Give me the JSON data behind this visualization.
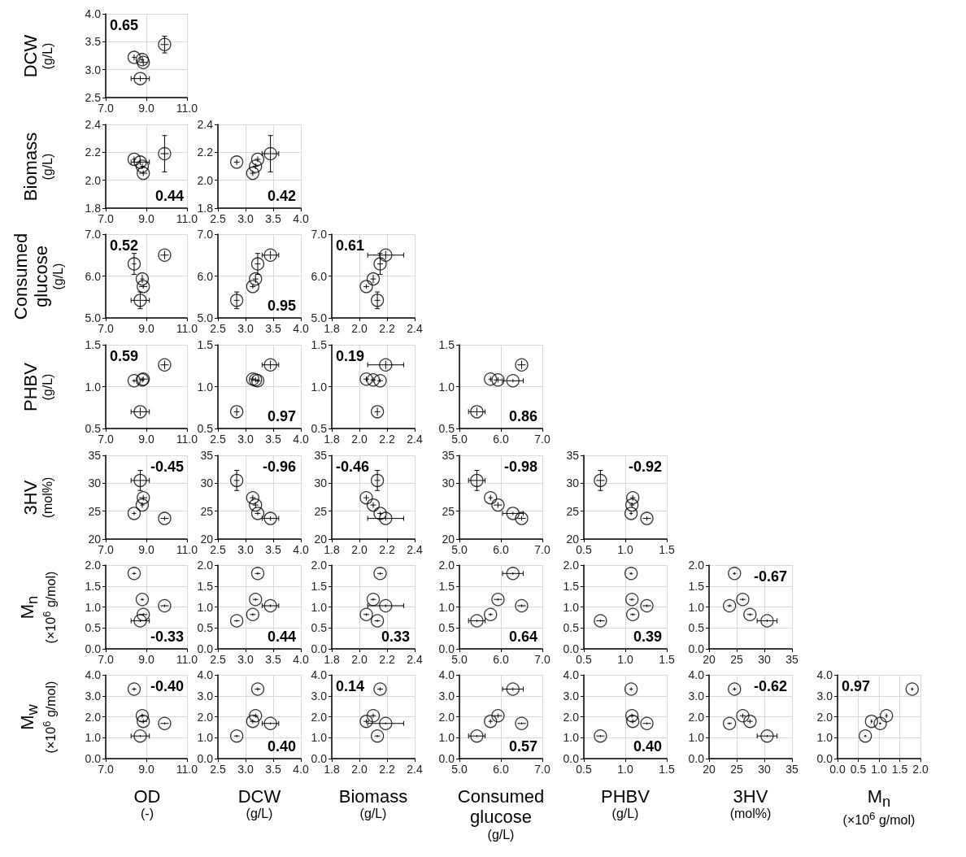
{
  "chart_data": [
    {
      "type": "scatter",
      "ylabel": "DCW (g/L)",
      "x": [
        8.7,
        8.85,
        8.8,
        8.4,
        9.9
      ],
      "xerrors": [
        0.45,
        0.2,
        0.1,
        0.1,
        0.2
      ],
      "values": [
        2.84,
        3.13,
        3.18,
        3.22,
        3.45
      ],
      "errors": [
        0.05,
        0.05,
        0.05,
        0.05,
        0.15
      ],
      "color": "#000000",
      "marker": "circle",
      "grid": true,
      "xlim": [
        7,
        11
      ],
      "xticks": [
        {
          "value": 7,
          "label": "7.0"
        },
        {
          "value": 9,
          "label": "9.0"
        },
        {
          "value": 11,
          "label": "11.0"
        }
      ],
      "ylim": [
        2.5,
        4
      ],
      "yticks": [
        2.5,
        {
          "value": 3,
          "label": "3.0"
        },
        3.5,
        {
          "value": 4,
          "label": "4.0"
        }
      ],
      "annotations": [
        {
          "text": "0.65"
        }
      ]
    },
    {
      "type": "scatter",
      "ylabel": "Biomass (g/L)",
      "x": [
        8.7,
        8.85,
        8.8,
        8.4,
        9.9
      ],
      "xerrors": [
        0.45,
        0.2,
        0.1,
        0.1,
        0.2
      ],
      "values": [
        2.13,
        2.05,
        2.1,
        2.15,
        2.19
      ],
      "errors": [
        0.02,
        0.02,
        0.02,
        0.02,
        0.13
      ],
      "color": "#000000",
      "marker": "circle",
      "grid": true,
      "xlim": [
        7,
        11
      ],
      "xticks": [
        {
          "value": 7,
          "label": "7.0"
        },
        {
          "value": 9,
          "label": "9.0"
        },
        {
          "value": 11,
          "label": "11.0"
        }
      ],
      "ylim": [
        1.8,
        2.4
      ],
      "yticks": [
        1.8,
        {
          "value": 2,
          "label": "2.0"
        },
        2.2,
        2.4
      ],
      "annotations": [
        {
          "text": "0.44"
        }
      ]
    },
    {
      "type": "scatter",
      "x": [
        2.84,
        3.13,
        3.18,
        3.22,
        3.45
      ],
      "xerrors": [
        0.05,
        0.05,
        0.05,
        0.05,
        0.15
      ],
      "values": [
        2.13,
        2.05,
        2.1,
        2.15,
        2.19
      ],
      "errors": [
        0.02,
        0.02,
        0.02,
        0.02,
        0.13
      ],
      "color": "#000000",
      "marker": "circle",
      "grid": true,
      "xlim": [
        2.5,
        4
      ],
      "xticks": [
        2.5,
        {
          "value": 3,
          "label": "3.0"
        },
        3.5,
        {
          "value": 4,
          "label": "4.0"
        }
      ],
      "ylim": [
        1.8,
        2.4
      ],
      "yticks": [
        1.8,
        {
          "value": 2,
          "label": "2.0"
        },
        2.2,
        2.4
      ],
      "annotations": [
        {
          "text": "0.42"
        }
      ]
    },
    {
      "type": "scatter",
      "ylabel": "Consumed glucose (g/L)",
      "x": [
        8.7,
        8.85,
        8.8,
        8.4,
        9.9
      ],
      "xerrors": [
        0.45,
        0.2,
        0.1,
        0.1,
        0.2
      ],
      "values": [
        5.42,
        5.75,
        5.93,
        6.29,
        6.5
      ],
      "errors": [
        0.2,
        0.05,
        0.1,
        0.25,
        0.1
      ],
      "color": "#000000",
      "marker": "circle",
      "grid": true,
      "xlim": [
        7,
        11
      ],
      "xticks": [
        {
          "value": 7,
          "label": "7.0"
        },
        {
          "value": 9,
          "label": "9.0"
        },
        {
          "value": 11,
          "label": "11.0"
        }
      ],
      "ylim": [
        5,
        7
      ],
      "yticks": [
        {
          "value": 5,
          "label": "5.0"
        },
        {
          "value": 6,
          "label": "6.0"
        },
        {
          "value": 7,
          "label": "7.0"
        }
      ],
      "annotations": [
        {
          "text": "0.52"
        }
      ]
    },
    {
      "type": "scatter",
      "x": [
        2.84,
        3.13,
        3.18,
        3.22,
        3.45
      ],
      "xerrors": [
        0.05,
        0.05,
        0.05,
        0.05,
        0.15
      ],
      "values": [
        5.42,
        5.75,
        5.93,
        6.29,
        6.5
      ],
      "errors": [
        0.2,
        0.05,
        0.1,
        0.25,
        0.1
      ],
      "color": "#000000",
      "marker": "circle",
      "grid": true,
      "xlim": [
        2.5,
        4
      ],
      "xticks": [
        2.5,
        {
          "value": 3,
          "label": "3.0"
        },
        3.5,
        {
          "value": 4,
          "label": "4.0"
        }
      ],
      "ylim": [
        5,
        7
      ],
      "yticks": [
        {
          "value": 5,
          "label": "5.0"
        },
        {
          "value": 6,
          "label": "6.0"
        },
        {
          "value": 7,
          "label": "7.0"
        }
      ],
      "annotations": [
        "0.95"
      ]
    },
    {
      "type": "scatter",
      "x": [
        2.13,
        2.05,
        2.1,
        2.15,
        2.19
      ],
      "xerrors": [
        0.02,
        0.02,
        0.02,
        0.02,
        0.13
      ],
      "values": [
        5.42,
        5.75,
        5.93,
        6.29,
        6.5
      ],
      "errors": [
        0.2,
        0.05,
        0.1,
        0.25,
        0.1
      ],
      "color": "#000000",
      "marker": "circle",
      "grid": true,
      "xlim": [
        1.8,
        2.4
      ],
      "xticks": [
        1.8,
        {
          "value": 2,
          "label": "2.0"
        },
        2.2,
        2.4
      ],
      "ylim": [
        5,
        7
      ],
      "yticks": [
        {
          "value": 5,
          "label": "5.0"
        },
        {
          "value": 6,
          "label": "6.0"
        },
        {
          "value": 7,
          "label": "7.0"
        }
      ],
      "annotations": [
        {
          "text": "0.61"
        }
      ]
    },
    {
      "type": "scatter",
      "ylabel": "PHBV (g/L)",
      "x": [
        8.7,
        8.85,
        8.8,
        8.4,
        9.9
      ],
      "xerrors": [
        0.45,
        0.2,
        0.1,
        0.1,
        0.2
      ],
      "values": [
        0.7,
        1.09,
        1.08,
        1.07,
        1.26
      ],
      "errors": [
        0.05,
        0.03,
        0.03,
        0.02,
        0.05
      ],
      "color": "#000000",
      "marker": "circle",
      "grid": true,
      "xlim": [
        7,
        11
      ],
      "xticks": [
        {
          "value": 7,
          "label": "7.0"
        },
        {
          "value": 9,
          "label": "9.0"
        },
        {
          "value": 11,
          "label": "11.0"
        }
      ],
      "ylim": [
        0.5,
        1.5
      ],
      "yticks": [
        0.5,
        {
          "value": 1,
          "label": "1.0"
        },
        1.5
      ],
      "annotations": [
        {
          "text": "0.59"
        }
      ]
    },
    {
      "type": "scatter",
      "x": [
        2.84,
        3.13,
        3.18,
        3.22,
        3.45
      ],
      "xerrors": [
        0.05,
        0.05,
        0.05,
        0.05,
        0.15
      ],
      "values": [
        0.7,
        1.09,
        1.08,
        1.07,
        1.26
      ],
      "errors": [
        0.05,
        0.03,
        0.03,
        0.02,
        0.05
      ],
      "color": "#000000",
      "marker": "circle",
      "grid": true,
      "xlim": [
        2.5,
        4
      ],
      "xticks": [
        2.5,
        {
          "value": 3,
          "label": "3.0"
        },
        3.5,
        {
          "value": 4,
          "label": "4.0"
        }
      ],
      "ylim": [
        0.5,
        1.5
      ],
      "yticks": [
        0.5,
        {
          "value": 1,
          "label": "1.0"
        },
        1.5
      ],
      "annotations": [
        "0.97"
      ]
    },
    {
      "type": "scatter",
      "x": [
        2.13,
        2.05,
        2.1,
        2.15,
        2.19
      ],
      "xerrors": [
        0.02,
        0.02,
        0.02,
        0.02,
        0.13
      ],
      "values": [
        0.7,
        1.09,
        1.08,
        1.07,
        1.26
      ],
      "errors": [
        0.05,
        0.03,
        0.03,
        0.02,
        0.05
      ],
      "color": "#000000",
      "marker": "circle",
      "grid": true,
      "xlim": [
        1.8,
        2.4
      ],
      "xticks": [
        1.8,
        {
          "value": 2,
          "label": "2.0"
        },
        2.2,
        2.4
      ],
      "ylim": [
        0.5,
        1.5
      ],
      "yticks": [
        0.5,
        {
          "value": 1,
          "label": "1.0"
        },
        1.5
      ],
      "annotations": [
        {
          "text": "0.19"
        }
      ]
    },
    {
      "type": "scatter",
      "x": [
        5.42,
        5.75,
        5.93,
        6.29,
        6.5
      ],
      "xerrors": [
        0.2,
        0.05,
        0.1,
        0.25,
        0.1
      ],
      "values": [
        0.7,
        1.09,
        1.08,
        1.07,
        1.26
      ],
      "errors": [
        0.05,
        0.03,
        0.03,
        0.02,
        0.05
      ],
      "color": "#000000",
      "marker": "circle",
      "grid": true,
      "xlim": [
        5,
        7
      ],
      "xticks": [
        {
          "value": 5,
          "label": "5.0"
        },
        {
          "value": 6,
          "label": "6.0"
        },
        {
          "value": 7,
          "label": "7.0"
        }
      ],
      "ylim": [
        0.5,
        1.5
      ],
      "yticks": [
        0.5,
        {
          "value": 1,
          "label": "1.0"
        },
        1.5
      ],
      "annotations": [
        "0.86"
      ]
    },
    {
      "type": "scatter",
      "ylabel": "3HV (mol%)",
      "x": [
        8.7,
        8.85,
        8.8,
        8.4,
        9.9
      ],
      "xerrors": [
        0.45,
        0.2,
        0.1,
        0.1,
        0.2
      ],
      "values": [
        30.5,
        27.4,
        26.1,
        24.6,
        23.7
      ],
      "errors": [
        1.8,
        0.5,
        0.5,
        0.3,
        0.4
      ],
      "color": "#000000",
      "marker": "circle",
      "grid": true,
      "xlim": [
        7,
        11
      ],
      "xticks": [
        {
          "value": 7,
          "label": "7.0"
        },
        {
          "value": 9,
          "label": "9.0"
        },
        {
          "value": 11,
          "label": "11.0"
        }
      ],
      "ylim": [
        20,
        35
      ],
      "yticks": [
        20,
        25,
        30,
        35
      ],
      "annotations": [
        {
          "text": "-0.45"
        }
      ]
    },
    {
      "type": "scatter",
      "x": [
        2.84,
        3.13,
        3.18,
        3.22,
        3.45
      ],
      "xerrors": [
        0.05,
        0.05,
        0.05,
        0.05,
        0.15
      ],
      "values": [
        30.5,
        27.4,
        26.1,
        24.6,
        23.7
      ],
      "errors": [
        1.8,
        0.5,
        0.5,
        0.3,
        0.4
      ],
      "color": "#000000",
      "marker": "circle",
      "grid": true,
      "xlim": [
        2.5,
        4
      ],
      "xticks": [
        2.5,
        {
          "value": 3,
          "label": "3.0"
        },
        3.5,
        {
          "value": 4,
          "label": "4.0"
        }
      ],
      "ylim": [
        20,
        35
      ],
      "yticks": [
        20,
        25,
        30,
        35
      ],
      "annotations": [
        "-0.96"
      ]
    },
    {
      "type": "scatter",
      "x": [
        2.13,
        2.05,
        2.1,
        2.15,
        2.19
      ],
      "xerrors": [
        0.02,
        0.02,
        0.02,
        0.02,
        0.13
      ],
      "values": [
        30.5,
        27.4,
        26.1,
        24.6,
        23.7
      ],
      "errors": [
        1.8,
        0.5,
        0.5,
        0.3,
        0.4
      ],
      "color": "#000000",
      "marker": "circle",
      "grid": true,
      "xlim": [
        1.8,
        2.4
      ],
      "xticks": [
        1.8,
        {
          "value": 2,
          "label": "2.0"
        },
        2.2,
        2.4
      ],
      "ylim": [
        20,
        35
      ],
      "yticks": [
        20,
        25,
        30,
        35
      ],
      "annotations": [
        {
          "text": "-0.46"
        }
      ]
    },
    {
      "type": "scatter",
      "x": [
        5.42,
        5.75,
        5.93,
        6.29,
        6.5
      ],
      "xerrors": [
        0.2,
        0.05,
        0.1,
        0.25,
        0.1
      ],
      "values": [
        30.5,
        27.4,
        26.1,
        24.6,
        23.7
      ],
      "errors": [
        1.8,
        0.5,
        0.5,
        0.3,
        0.4
      ],
      "color": "#000000",
      "marker": "circle",
      "grid": true,
      "xlim": [
        5,
        7
      ],
      "xticks": [
        {
          "value": 5,
          "label": "5.0"
        },
        {
          "value": 6,
          "label": "6.0"
        },
        {
          "value": 7,
          "label": "7.0"
        }
      ],
      "ylim": [
        20,
        35
      ],
      "yticks": [
        20,
        25,
        30,
        35
      ],
      "annotations": [
        "-0.98"
      ]
    },
    {
      "type": "scatter",
      "x": [
        0.7,
        1.09,
        1.08,
        1.07,
        1.26
      ],
      "xerrors": [
        0.05,
        0.03,
        0.03,
        0.02,
        0.05
      ],
      "values": [
        30.5,
        27.4,
        26.1,
        24.6,
        23.7
      ],
      "errors": [
        1.8,
        0.5,
        0.5,
        0.3,
        0.4
      ],
      "color": "#000000",
      "marker": "circle",
      "grid": true,
      "xlim": [
        0.5,
        1.5
      ],
      "xticks": [
        0.5,
        {
          "value": 1,
          "label": "1.0"
        },
        1.5
      ],
      "ylim": [
        20,
        35
      ],
      "yticks": [
        20,
        25,
        30,
        35
      ],
      "annotations": [
        "-0.92"
      ]
    },
    {
      "type": "scatter",
      "ylabel": "M$_{n}$ (×10$^{6}$ g/mol)",
      "x": [
        8.7,
        8.85,
        8.8,
        8.4,
        9.9
      ],
      "xerrors": [
        0.45,
        0.2,
        0.1,
        0.1,
        0.2
      ],
      "values": [
        0.67,
        0.82,
        1.18,
        1.8,
        1.03
      ],
      "errors": [
        0.03,
        0.03,
        0.03,
        0.03,
        0.03
      ],
      "color": "#000000",
      "marker": "circle",
      "grid": true,
      "xlim": [
        7,
        11
      ],
      "xticks": [
        {
          "value": 7,
          "label": "7.0"
        },
        {
          "value": 9,
          "label": "9.0"
        },
        {
          "value": 11,
          "label": "11.0"
        }
      ],
      "ylim": [
        0,
        2
      ],
      "yticks": [
        {
          "value": 0,
          "label": "0.0"
        },
        0.5,
        {
          "value": 1,
          "label": "1.0"
        },
        1.5,
        {
          "value": 2,
          "label": "2.0"
        }
      ],
      "annotations": [
        {
          "text": "-0.33"
        }
      ]
    },
    {
      "type": "scatter",
      "x": [
        2.84,
        3.13,
        3.18,
        3.22,
        3.45
      ],
      "xerrors": [
        0.05,
        0.05,
        0.05,
        0.05,
        0.15
      ],
      "values": [
        0.67,
        0.82,
        1.18,
        1.8,
        1.03
      ],
      "errors": [
        0.03,
        0.03,
        0.03,
        0.03,
        0.03
      ],
      "color": "#000000",
      "marker": "circle",
      "grid": true,
      "xlim": [
        2.5,
        4
      ],
      "xticks": [
        2.5,
        {
          "value": 3,
          "label": "3.0"
        },
        3.5,
        {
          "value": 4,
          "label": "4.0"
        }
      ],
      "ylim": [
        0,
        2
      ],
      "yticks": [
        {
          "value": 0,
          "label": "0.0"
        },
        0.5,
        {
          "value": 1,
          "label": "1.0"
        },
        1.5,
        {
          "value": 2,
          "label": "2.0"
        }
      ],
      "annotations": [
        {
          "text": "0.44"
        }
      ]
    },
    {
      "type": "scatter",
      "x": [
        2.13,
        2.05,
        2.1,
        2.15,
        2.19
      ],
      "xerrors": [
        0.02,
        0.02,
        0.02,
        0.02,
        0.13
      ],
      "values": [
        0.67,
        0.82,
        1.18,
        1.8,
        1.03
      ],
      "errors": [
        0.03,
        0.03,
        0.03,
        0.03,
        0.03
      ],
      "color": "#000000",
      "marker": "circle",
      "grid": true,
      "xlim": [
        1.8,
        2.4
      ],
      "xticks": [
        1.8,
        {
          "value": 2,
          "label": "2.0"
        },
        2.2,
        2.4
      ],
      "ylim": [
        0,
        2
      ],
      "yticks": [
        {
          "value": 0,
          "label": "0.0"
        },
        0.5,
        {
          "value": 1,
          "label": "1.0"
        },
        1.5,
        {
          "value": 2,
          "label": "2.0"
        }
      ],
      "annotations": [
        {
          "text": "0.33"
        }
      ]
    },
    {
      "type": "scatter",
      "x": [
        5.42,
        5.75,
        5.93,
        6.29,
        6.5
      ],
      "xerrors": [
        0.2,
        0.05,
        0.1,
        0.25,
        0.1
      ],
      "values": [
        0.67,
        0.82,
        1.18,
        1.8,
        1.03
      ],
      "errors": [
        0.03,
        0.03,
        0.03,
        0.03,
        0.03
      ],
      "color": "#000000",
      "marker": "circle",
      "grid": true,
      "xlim": [
        5,
        7
      ],
      "xticks": [
        {
          "value": 5,
          "label": "5.0"
        },
        {
          "value": 6,
          "label": "6.0"
        },
        {
          "value": 7,
          "label": "7.0"
        }
      ],
      "ylim": [
        0,
        2
      ],
      "yticks": [
        {
          "value": 0,
          "label": "0.0"
        },
        0.5,
        {
          "value": 1,
          "label": "1.0"
        },
        1.5,
        {
          "value": 2,
          "label": "2.0"
        }
      ],
      "annotations": [
        {
          "text": "0.64"
        }
      ]
    },
    {
      "type": "scatter",
      "x": [
        0.7,
        1.09,
        1.08,
        1.07,
        1.26
      ],
      "xerrors": [
        0.05,
        0.03,
        0.03,
        0.02,
        0.05
      ],
      "values": [
        0.67,
        0.82,
        1.18,
        1.8,
        1.03
      ],
      "errors": [
        0.03,
        0.03,
        0.03,
        0.03,
        0.03
      ],
      "color": "#000000",
      "marker": "circle",
      "grid": true,
      "xlim": [
        0.5,
        1.5
      ],
      "xticks": [
        0.5,
        {
          "value": 1,
          "label": "1.0"
        },
        1.5
      ],
      "ylim": [
        0,
        2
      ],
      "yticks": [
        {
          "value": 0,
          "label": "0.0"
        },
        0.5,
        {
          "value": 1,
          "label": "1.0"
        },
        1.5,
        {
          "value": 2,
          "label": "2.0"
        }
      ],
      "annotations": [
        {
          "text": "0.39"
        }
      ]
    },
    {
      "type": "scatter",
      "x": [
        30.5,
        27.4,
        26.1,
        24.6,
        23.7
      ],
      "xerrors": [
        1.8,
        0.5,
        0.5,
        0.3,
        0.4
      ],
      "values": [
        0.67,
        0.82,
        1.18,
        1.8,
        1.03
      ],
      "errors": [
        0.03,
        0.03,
        0.03,
        0.03,
        0.03
      ],
      "color": "#000000",
      "marker": "circle",
      "grid": true,
      "xlim": [
        20,
        35
      ],
      "xticks": [
        20,
        25,
        30,
        35
      ],
      "ylim": [
        0,
        2
      ],
      "yticks": [
        {
          "value": 0,
          "label": "0.0"
        },
        0.5,
        {
          "value": 1,
          "label": "1.0"
        },
        1.5,
        {
          "value": 2,
          "label": "2.0"
        }
      ],
      "annotations": [
        {
          "text": "-0.67"
        }
      ]
    },
    {
      "type": "scatter",
      "ylabel": "M$_{w}$ (×10$^{6}$ g/mol)",
      "xlabel": "OD (-)",
      "x": [
        8.7,
        8.85,
        8.8,
        8.4,
        9.9
      ],
      "xerrors": [
        0.45,
        0.2,
        0.1,
        0.1,
        0.2
      ],
      "values": [
        1.08,
        1.78,
        2.05,
        3.32,
        1.68
      ],
      "errors": [
        0.05,
        0.1,
        0.1,
        0.08,
        0.05
      ],
      "color": "#000000",
      "marker": "circle",
      "grid": true,
      "xlim": [
        7,
        11
      ],
      "xticks": [
        {
          "value": 7,
          "label": "7.0"
        },
        {
          "value": 9,
          "label": "9.0"
        },
        {
          "value": 11,
          "label": "11.0"
        }
      ],
      "ylim": [
        0,
        4
      ],
      "yticks": [
        {
          "value": 0,
          "label": "0.0"
        },
        {
          "value": 1,
          "label": "1.0"
        },
        {
          "value": 2,
          "label": "2.0"
        },
        {
          "value": 3,
          "label": "3.0"
        },
        {
          "value": 4,
          "label": "4.0"
        }
      ],
      "annotations": [
        {
          "text": "-0.40"
        }
      ]
    },
    {
      "type": "scatter",
      "xlabel": "DCW (g/L)",
      "x": [
        2.84,
        3.13,
        3.18,
        3.22,
        3.45
      ],
      "xerrors": [
        0.05,
        0.05,
        0.05,
        0.05,
        0.15
      ],
      "values": [
        1.08,
        1.78,
        2.05,
        3.32,
        1.68
      ],
      "errors": [
        0.05,
        0.1,
        0.1,
        0.08,
        0.05
      ],
      "color": "#000000",
      "marker": "circle",
      "grid": true,
      "xlim": [
        2.5,
        4
      ],
      "xticks": [
        2.5,
        {
          "value": 3,
          "label": "3.0"
        },
        3.5,
        {
          "value": 4,
          "label": "4.0"
        }
      ],
      "ylim": [
        0,
        4
      ],
      "yticks": [
        {
          "value": 0,
          "label": "0.0"
        },
        {
          "value": 1,
          "label": "1.0"
        },
        {
          "value": 2,
          "label": "2.0"
        },
        {
          "value": 3,
          "label": "3.0"
        },
        {
          "value": 4,
          "label": "4.0"
        }
      ],
      "annotations": [
        {
          "text": "0.40"
        }
      ]
    },
    {
      "type": "scatter",
      "xlabel": "Biomass (g/L)",
      "x": [
        2.13,
        2.05,
        2.1,
        2.15,
        2.19
      ],
      "xerrors": [
        0.02,
        0.02,
        0.02,
        0.02,
        0.13
      ],
      "values": [
        1.08,
        1.78,
        2.05,
        3.32,
        1.68
      ],
      "errors": [
        0.05,
        0.1,
        0.1,
        0.08,
        0.05
      ],
      "color": "#000000",
      "marker": "circle",
      "grid": true,
      "xlim": [
        1.8,
        2.4
      ],
      "xticks": [
        1.8,
        {
          "value": 2,
          "label": "2.0"
        },
        2.2,
        2.4
      ],
      "ylim": [
        0,
        4
      ],
      "yticks": [
        {
          "value": 0,
          "label": "0.0"
        },
        {
          "value": 1,
          "label": "1.0"
        },
        {
          "value": 2,
          "label": "2.0"
        },
        {
          "value": 3,
          "label": "3.0"
        },
        {
          "value": 4,
          "label": "4.0"
        }
      ],
      "annotations": [
        {
          "text": "0.14"
        }
      ]
    },
    {
      "type": "scatter",
      "xlabel": "Consumed glucose (g/L)",
      "x": [
        5.42,
        5.75,
        5.93,
        6.29,
        6.5
      ],
      "xerrors": [
        0.2,
        0.05,
        0.1,
        0.25,
        0.1
      ],
      "values": [
        1.08,
        1.78,
        2.05,
        3.32,
        1.68
      ],
      "errors": [
        0.05,
        0.1,
        0.1,
        0.08,
        0.05
      ],
      "color": "#000000",
      "marker": "circle",
      "grid": true,
      "xlim": [
        5,
        7
      ],
      "xticks": [
        {
          "value": 5,
          "label": "5.0"
        },
        {
          "value": 6,
          "label": "6.0"
        },
        {
          "value": 7,
          "label": "7.0"
        }
      ],
      "ylim": [
        0,
        4
      ],
      "yticks": [
        {
          "value": 0,
          "label": "0.0"
        },
        {
          "value": 1,
          "label": "1.0"
        },
        {
          "value": 2,
          "label": "2.0"
        },
        {
          "value": 3,
          "label": "3.0"
        },
        {
          "value": 4,
          "label": "4.0"
        }
      ],
      "annotations": [
        {
          "text": "0.57"
        }
      ]
    },
    {
      "type": "scatter",
      "xlabel": "PHBV (g/L)",
      "x": [
        0.7,
        1.09,
        1.08,
        1.07,
        1.26
      ],
      "xerrors": [
        0.05,
        0.03,
        0.03,
        0.02,
        0.05
      ],
      "values": [
        1.08,
        1.78,
        2.05,
        3.32,
        1.68
      ],
      "errors": [
        0.05,
        0.1,
        0.1,
        0.08,
        0.05
      ],
      "color": "#000000",
      "marker": "circle",
      "grid": true,
      "xlim": [
        0.5,
        1.5
      ],
      "xticks": [
        0.5,
        {
          "value": 1,
          "label": "1.0"
        },
        1.5
      ],
      "ylim": [
        0,
        4
      ],
      "yticks": [
        {
          "value": 0,
          "label": "0.0"
        },
        {
          "value": 1,
          "label": "1.0"
        },
        {
          "value": 2,
          "label": "2.0"
        },
        {
          "value": 3,
          "label": "3.0"
        },
        {
          "value": 4,
          "label": "4.0"
        }
      ],
      "annotations": [
        {
          "text": "0.40"
        }
      ]
    },
    {
      "type": "scatter",
      "xlabel": "3HV (mol%)",
      "x": [
        30.5,
        27.4,
        26.1,
        24.6,
        23.7
      ],
      "xerrors": [
        1.8,
        0.5,
        0.5,
        0.3,
        0.4
      ],
      "values": [
        1.08,
        1.78,
        2.05,
        3.32,
        1.68
      ],
      "errors": [
        0.05,
        0.1,
        0.1,
        0.08,
        0.05
      ],
      "color": "#000000",
      "marker": "circle",
      "grid": true,
      "xlim": [
        20,
        35
      ],
      "xticks": [
        20,
        25,
        30,
        35
      ],
      "ylim": [
        0,
        4
      ],
      "yticks": [
        {
          "value": 0,
          "label": "0.0"
        },
        {
          "value": 1,
          "label": "1.0"
        },
        {
          "value": 2,
          "label": "2.0"
        },
        {
          "value": 3,
          "label": "3.0"
        },
        {
          "value": 4,
          "label": "4.0"
        }
      ],
      "annotations": [
        {
          "text": "-0.62"
        }
      ]
    },
    {
      "type": "scatter",
      "xlabel": "M$_{n}$ (×10$^{6}$ g/mol)",
      "x": [
        0.67,
        0.82,
        1.18,
        1.8,
        1.03
      ],
      "xerrors": [
        0.03,
        0.03,
        0.03,
        0.03,
        0.03
      ],
      "values": [
        1.08,
        1.78,
        2.05,
        3.32,
        1.68
      ],
      "errors": [
        0.05,
        0.1,
        0.1,
        0.08,
        0.05
      ],
      "color": "#000000",
      "marker": "circle",
      "grid": true,
      "xlim": [
        0,
        2
      ],
      "xticks": [
        {
          "value": 0,
          "label": "0.0"
        },
        0.5,
        {
          "value": 1,
          "label": "1.0"
        },
        1.5,
        {
          "value": 2,
          "label": "2.0"
        }
      ],
      "ylim": [
        0,
        4
      ],
      "yticks": [
        {
          "value": 0,
          "label": "0.0"
        },
        {
          "value": 1,
          "label": "1.0"
        },
        {
          "value": 2,
          "label": "2.0"
        },
        {
          "value": 3,
          "label": "3.0"
        },
        {
          "value": 4,
          "label": "4.0"
        }
      ],
      "annotations": [
        "0.97"
      ]
    }
  ]
}
